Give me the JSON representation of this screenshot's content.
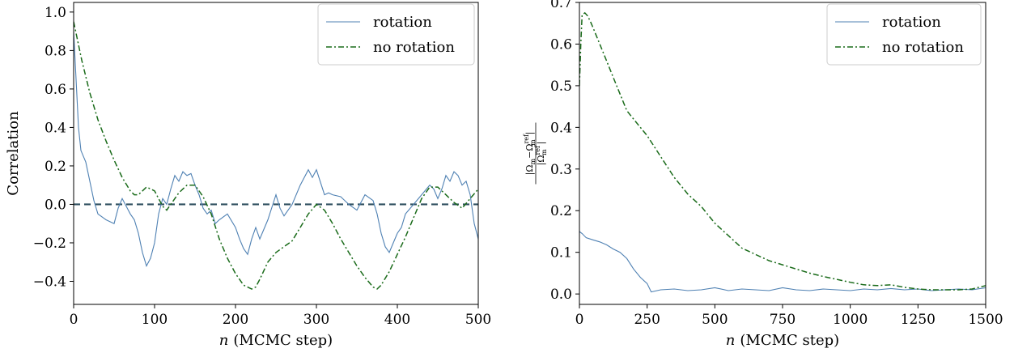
{
  "colors": {
    "rotation": "#4f81b3",
    "no_rotation": "#1a6b1a",
    "zero_line": "#2f4f5f",
    "axes": "#000000",
    "legend_border": "#cccccc"
  },
  "chart_data": [
    {
      "type": "line",
      "xlabel_var": "n",
      "xlabel": "(MCMC step)",
      "ylabel": "Correlation",
      "xlim": [
        0,
        500
      ],
      "ylim": [
        -0.52,
        1.05
      ],
      "xticks": [
        0,
        100,
        200,
        300,
        400,
        500
      ],
      "xtick_labels": [
        "0",
        "100",
        "200",
        "300",
        "400",
        "500"
      ],
      "yticks": [
        -0.4,
        -0.2,
        0.0,
        0.2,
        0.4,
        0.6,
        0.8,
        1.0
      ],
      "ytick_labels": [
        "−0.4",
        "−0.2",
        "0.0",
        "0.2",
        "0.4",
        "0.6",
        "0.8",
        "1.0"
      ],
      "grid": false,
      "legend_position": "top-right",
      "reference_line": {
        "y": 0,
        "style": "dashed"
      },
      "series": [
        {
          "name": "rotation",
          "style": "solid",
          "x": [
            0,
            3,
            6,
            9,
            12,
            15,
            20,
            25,
            30,
            40,
            50,
            55,
            60,
            70,
            75,
            80,
            85,
            90,
            95,
            100,
            105,
            110,
            115,
            120,
            125,
            130,
            135,
            140,
            145,
            150,
            155,
            160,
            165,
            170,
            175,
            180,
            190,
            200,
            205,
            210,
            215,
            220,
            225,
            230,
            240,
            250,
            255,
            260,
            270,
            280,
            290,
            295,
            300,
            310,
            315,
            320,
            330,
            340,
            350,
            360,
            370,
            375,
            380,
            385,
            390,
            395,
            400,
            405,
            410,
            420,
            430,
            440,
            445,
            450,
            455,
            460,
            465,
            470,
            475,
            480,
            485,
            490,
            495,
            500
          ],
          "y": [
            0.9,
            0.65,
            0.4,
            0.28,
            0.25,
            0.22,
            0.12,
            0.02,
            -0.05,
            -0.08,
            -0.1,
            -0.02,
            0.03,
            -0.05,
            -0.08,
            -0.15,
            -0.25,
            -0.32,
            -0.28,
            -0.2,
            -0.05,
            0.03,
            0.0,
            0.08,
            0.15,
            0.12,
            0.17,
            0.15,
            0.16,
            0.1,
            0.05,
            -0.02,
            -0.05,
            -0.03,
            -0.1,
            -0.08,
            -0.05,
            -0.12,
            -0.18,
            -0.23,
            -0.26,
            -0.18,
            -0.12,
            -0.18,
            -0.08,
            0.05,
            -0.02,
            -0.06,
            0.0,
            0.1,
            0.18,
            0.14,
            0.18,
            0.05,
            0.06,
            0.05,
            0.04,
            0.0,
            -0.03,
            0.05,
            0.02,
            -0.05,
            -0.15,
            -0.22,
            -0.25,
            -0.2,
            -0.15,
            -0.12,
            -0.05,
            0.0,
            0.05,
            0.1,
            0.08,
            0.03,
            0.08,
            0.15,
            0.12,
            0.17,
            0.15,
            0.1,
            0.12,
            0.05,
            -0.1,
            -0.18
          ]
        },
        {
          "name": "no rotation",
          "style": "dashdot",
          "x": [
            0,
            5,
            10,
            20,
            30,
            40,
            50,
            60,
            70,
            75,
            80,
            90,
            100,
            110,
            115,
            120,
            130,
            140,
            150,
            160,
            170,
            180,
            190,
            200,
            210,
            220,
            225,
            230,
            240,
            250,
            260,
            270,
            280,
            290,
            300,
            310,
            320,
            330,
            340,
            350,
            360,
            370,
            375,
            380,
            390,
            400,
            410,
            420,
            430,
            440,
            450,
            460,
            470,
            480,
            490,
            500
          ],
          "y": [
            0.95,
            0.85,
            0.75,
            0.58,
            0.44,
            0.33,
            0.23,
            0.14,
            0.07,
            0.05,
            0.05,
            0.09,
            0.07,
            -0.01,
            -0.03,
            0.0,
            0.06,
            0.1,
            0.1,
            0.04,
            -0.05,
            -0.18,
            -0.28,
            -0.36,
            -0.42,
            -0.44,
            -0.43,
            -0.39,
            -0.3,
            -0.25,
            -0.22,
            -0.19,
            -0.12,
            -0.05,
            0.0,
            -0.03,
            -0.1,
            -0.18,
            -0.25,
            -0.32,
            -0.38,
            -0.43,
            -0.44,
            -0.42,
            -0.35,
            -0.26,
            -0.17,
            -0.07,
            0.03,
            0.09,
            0.09,
            0.05,
            0.01,
            -0.02,
            0.03,
            0.08
          ]
        }
      ]
    },
    {
      "type": "line",
      "xlabel_var": "n",
      "xlabel": "(MCMC step)",
      "ylabel": "|Ωm−Ωm^ref| / |Ωm^ref|",
      "ylabel_num": "|Ω",
      "ylabel_num_sub": "m",
      "ylabel_num_mid": "−Ω",
      "ylabel_num_sub2": "m",
      "ylabel_num_sup2": "ref",
      "ylabel_num_end": "|",
      "ylabel_den": "|Ω",
      "ylabel_den_sub": "m",
      "ylabel_den_sup": "ref",
      "ylabel_den_end": "|",
      "xlim": [
        0,
        1500
      ],
      "ylim": [
        -0.025,
        0.7
      ],
      "xticks": [
        0,
        250,
        500,
        750,
        1000,
        1250,
        1500
      ],
      "xtick_labels": [
        "0",
        "250",
        "500",
        "750",
        "1000",
        "1250",
        "1500"
      ],
      "yticks": [
        0.0,
        0.1,
        0.2,
        0.3,
        0.4,
        0.5,
        0.6,
        0.7
      ],
      "ytick_labels": [
        "0.0",
        "0.1",
        "0.2",
        "0.3",
        "0.4",
        "0.5",
        "0.6",
        "0.7"
      ],
      "grid": false,
      "legend_position": "top-right",
      "series": [
        {
          "name": "rotation",
          "style": "solid",
          "x": [
            0,
            10,
            25,
            50,
            75,
            100,
            125,
            150,
            175,
            200,
            225,
            250,
            265,
            300,
            350,
            400,
            450,
            500,
            550,
            600,
            650,
            700,
            750,
            800,
            850,
            900,
            950,
            1000,
            1050,
            1100,
            1150,
            1200,
            1250,
            1300,
            1350,
            1400,
            1450,
            1500
          ],
          "y": [
            0.15,
            0.145,
            0.135,
            0.13,
            0.125,
            0.118,
            0.108,
            0.1,
            0.085,
            0.06,
            0.04,
            0.025,
            0.005,
            0.01,
            0.012,
            0.008,
            0.01,
            0.015,
            0.008,
            0.012,
            0.01,
            0.008,
            0.015,
            0.01,
            0.008,
            0.012,
            0.01,
            0.008,
            0.012,
            0.01,
            0.013,
            0.01,
            0.012,
            0.008,
            0.01,
            0.012,
            0.01,
            0.015
          ]
        },
        {
          "name": "no rotation",
          "style": "dashdot",
          "x": [
            0,
            5,
            10,
            20,
            30,
            40,
            50,
            75,
            100,
            125,
            150,
            175,
            200,
            250,
            300,
            350,
            400,
            450,
            500,
            550,
            600,
            650,
            700,
            750,
            800,
            850,
            900,
            950,
            1000,
            1050,
            1100,
            1150,
            1200,
            1250,
            1300,
            1350,
            1400,
            1450,
            1500
          ],
          "y": [
            0.5,
            0.6,
            0.67,
            0.675,
            0.668,
            0.655,
            0.64,
            0.6,
            0.56,
            0.52,
            0.48,
            0.44,
            0.42,
            0.38,
            0.33,
            0.28,
            0.24,
            0.21,
            0.17,
            0.14,
            0.11,
            0.095,
            0.08,
            0.07,
            0.06,
            0.05,
            0.042,
            0.035,
            0.028,
            0.022,
            0.02,
            0.022,
            0.016,
            0.012,
            0.01,
            0.01,
            0.01,
            0.012,
            0.02
          ]
        }
      ]
    }
  ]
}
